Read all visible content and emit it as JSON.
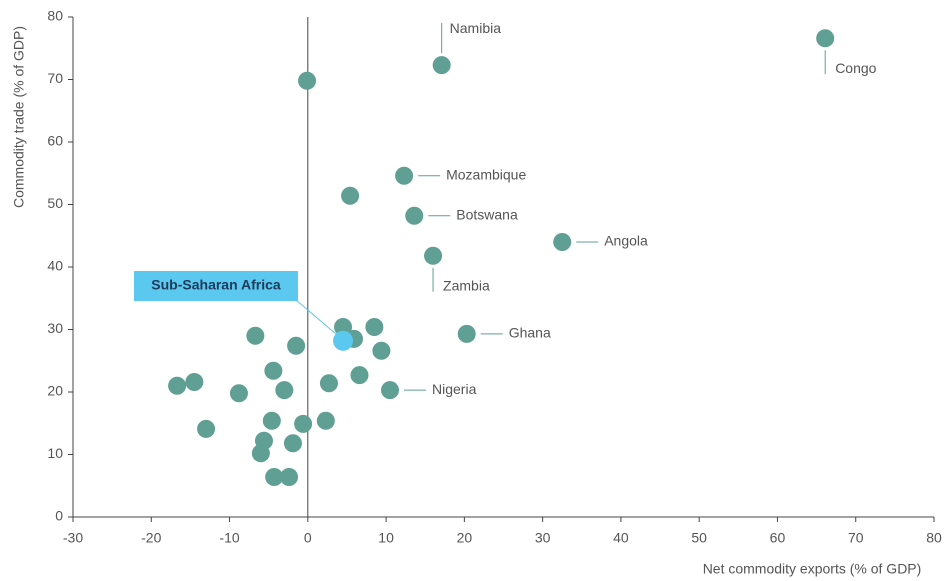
{
  "chart_data": {
    "type": "scatter",
    "x_label": "Net commodity exports (% of GDP)",
    "y_label": "Commodity trade (% of GDP)",
    "color": "#5f9f94",
    "x": [
      66.1,
      17.1,
      12.3,
      13.6,
      32.5,
      16.0,
      20.3,
      10.5,
      -0.1,
      5.4,
      4.5,
      8.5,
      5.9,
      9.4,
      -6.7,
      -1.5,
      -4.4,
      6.6,
      2.7,
      -3.0,
      -14.5,
      -16.7,
      -8.8,
      -13.0,
      -4.6,
      2.3,
      -0.6,
      -5.6,
      -1.9,
      -6.0,
      -4.3,
      -2.4
    ],
    "values": [
      76.6,
      72.3,
      54.6,
      48.2,
      44.0,
      41.8,
      29.3,
      20.3,
      69.8,
      51.4,
      30.4,
      30.4,
      28.5,
      26.6,
      29.0,
      27.4,
      23.4,
      22.7,
      21.4,
      20.3,
      21.6,
      21.0,
      19.8,
      14.1,
      15.4,
      15.4,
      14.9,
      12.2,
      11.8,
      10.2,
      6.4,
      6.4
    ],
    "labels": [
      "Congo",
      "Namibia",
      "Mozambique",
      "Botswana",
      "Angola",
      "Zambia",
      "Ghana",
      "Nigeria"
    ],
    "highlight": {
      "label": "Sub-Saharan Africa",
      "x": 4.5,
      "y": 28.2,
      "color": "#5bc8f0"
    },
    "xlim": [
      -30,
      80
    ],
    "xticks": [
      -30,
      -20,
      -10,
      0,
      10,
      20,
      30,
      40,
      50,
      60,
      70,
      80
    ],
    "ylim": [
      0,
      80
    ],
    "yticks": [
      0,
      10,
      20,
      30,
      40,
      50,
      60,
      70,
      80
    ]
  }
}
